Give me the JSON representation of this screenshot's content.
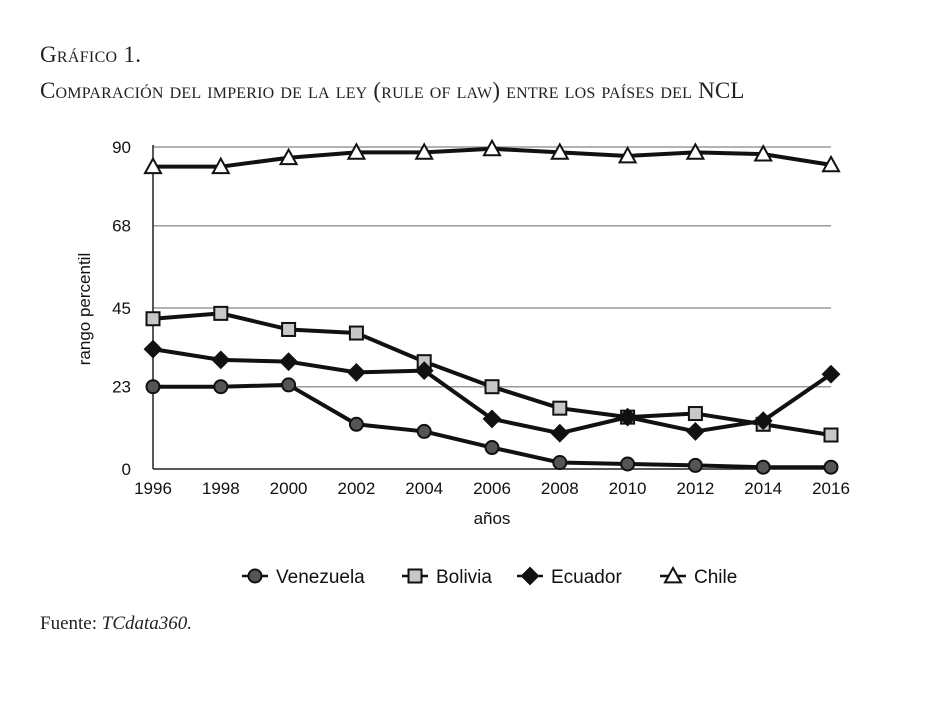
{
  "figure": {
    "caption_number": "Gráfico 1.",
    "caption_title": "Comparación del imperio de la ley (rule of law) entre los países del NCL",
    "source_label": "Fuente:",
    "source_value": "TCdata360."
  },
  "chart_data": {
    "type": "line",
    "xlabel": "años",
    "ylabel": "rango percentil",
    "x": [
      "1996",
      "1998",
      "2000",
      "2002",
      "2004",
      "2006",
      "2008",
      "2010",
      "2012",
      "2014",
      "2016"
    ],
    "yticks": [
      "0",
      "23",
      "45",
      "68",
      "90"
    ],
    "ylim": [
      0,
      90
    ],
    "grid": "horizontal",
    "legend_position": "bottom",
    "series": [
      {
        "name": "Venezuela",
        "marker": "circle",
        "fill": "#555555",
        "values": [
          23.0,
          23.0,
          23.5,
          12.5,
          10.5,
          6.0,
          1.8,
          1.4,
          1.0,
          0.5,
          0.5
        ]
      },
      {
        "name": "Bolivia",
        "marker": "square",
        "fill": "#c8c8c8",
        "values": [
          42.0,
          43.5,
          39.0,
          38.0,
          30.0,
          23.0,
          17.0,
          14.5,
          15.5,
          12.5,
          9.5
        ]
      },
      {
        "name": "Ecuador",
        "marker": "diamond",
        "fill": "#111111",
        "values": [
          33.5,
          30.5,
          30.0,
          27.0,
          27.5,
          14.0,
          10.0,
          14.5,
          10.5,
          13.5,
          26.5
        ]
      },
      {
        "name": "Chile",
        "marker": "triangle",
        "fill": "#ffffff",
        "values": [
          84.5,
          84.5,
          87.0,
          88.5,
          88.5,
          89.5,
          88.5,
          87.5,
          88.5,
          88.0,
          85.0
        ]
      }
    ]
  }
}
